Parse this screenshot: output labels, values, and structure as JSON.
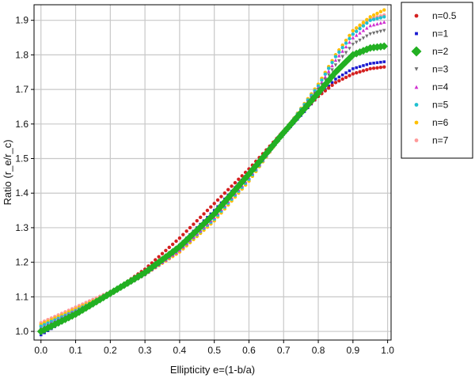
{
  "chart_data": {
    "type": "scatter",
    "xlabel": "Ellipticity e=(1-b/a)",
    "ylabel": "Ratio (r_e/r_c)",
    "xlim": [
      -0.02,
      1.01
    ],
    "ylim": [
      0.975,
      1.945
    ],
    "xticks": [
      "0.0",
      "0.1",
      "0.2",
      "0.3",
      "0.4",
      "0.5",
      "0.6",
      "0.7",
      "0.8",
      "0.9",
      "1.0"
    ],
    "yticks": [
      "1.0",
      "1.1",
      "1.2",
      "1.3",
      "1.4",
      "1.5",
      "1.6",
      "1.7",
      "1.8",
      "1.9"
    ],
    "grid": true,
    "legend_position": "right-top",
    "x": [
      0.0,
      0.1,
      0.2,
      0.3,
      0.4,
      0.5,
      0.6,
      0.7,
      0.8,
      0.85,
      0.9,
      0.95,
      0.99
    ],
    "series": [
      {
        "name": "n=0.5",
        "color": "#d42020",
        "marker": "circle",
        "values": [
          1.0,
          1.05,
          1.11,
          1.18,
          1.27,
          1.37,
          1.47,
          1.58,
          1.68,
          1.72,
          1.745,
          1.76,
          1.765
        ]
      },
      {
        "name": "n=1",
        "color": "#1a1ad0",
        "marker": "square",
        "values": [
          0.99,
          1.05,
          1.11,
          1.17,
          1.25,
          1.35,
          1.46,
          1.57,
          1.68,
          1.73,
          1.76,
          1.775,
          1.78
        ]
      },
      {
        "name": "n=2",
        "color": "#22b022",
        "marker": "diamond",
        "values": [
          1.0,
          1.05,
          1.11,
          1.17,
          1.245,
          1.34,
          1.455,
          1.575,
          1.69,
          1.75,
          1.8,
          1.82,
          1.825
        ]
      },
      {
        "name": "n=3",
        "color": "#707070",
        "marker": "tri-down",
        "values": [
          1.005,
          1.055,
          1.11,
          1.17,
          1.24,
          1.335,
          1.45,
          1.575,
          1.7,
          1.77,
          1.83,
          1.86,
          1.87
        ]
      },
      {
        "name": "n=4",
        "color": "#d030d0",
        "marker": "tri-up",
        "values": [
          1.01,
          1.06,
          1.11,
          1.165,
          1.235,
          1.33,
          1.445,
          1.575,
          1.705,
          1.785,
          1.85,
          1.885,
          1.895
        ]
      },
      {
        "name": "n=5",
        "color": "#20c0d0",
        "marker": "circle",
        "values": [
          1.015,
          1.06,
          1.11,
          1.165,
          1.235,
          1.325,
          1.44,
          1.575,
          1.71,
          1.795,
          1.86,
          1.9,
          1.91
        ]
      },
      {
        "name": "n=6",
        "color": "#ffc000",
        "marker": "circle",
        "values": [
          1.02,
          1.065,
          1.11,
          1.165,
          1.23,
          1.32,
          1.435,
          1.575,
          1.715,
          1.8,
          1.87,
          1.91,
          1.93
        ]
      },
      {
        "name": "n=7",
        "color": "#ff9999",
        "marker": "circle",
        "values": [
          1.025,
          1.07,
          1.115,
          1.165,
          1.23,
          1.32,
          1.435,
          1.575,
          1.715,
          1.8,
          1.87,
          1.905,
          1.915
        ]
      }
    ]
  }
}
